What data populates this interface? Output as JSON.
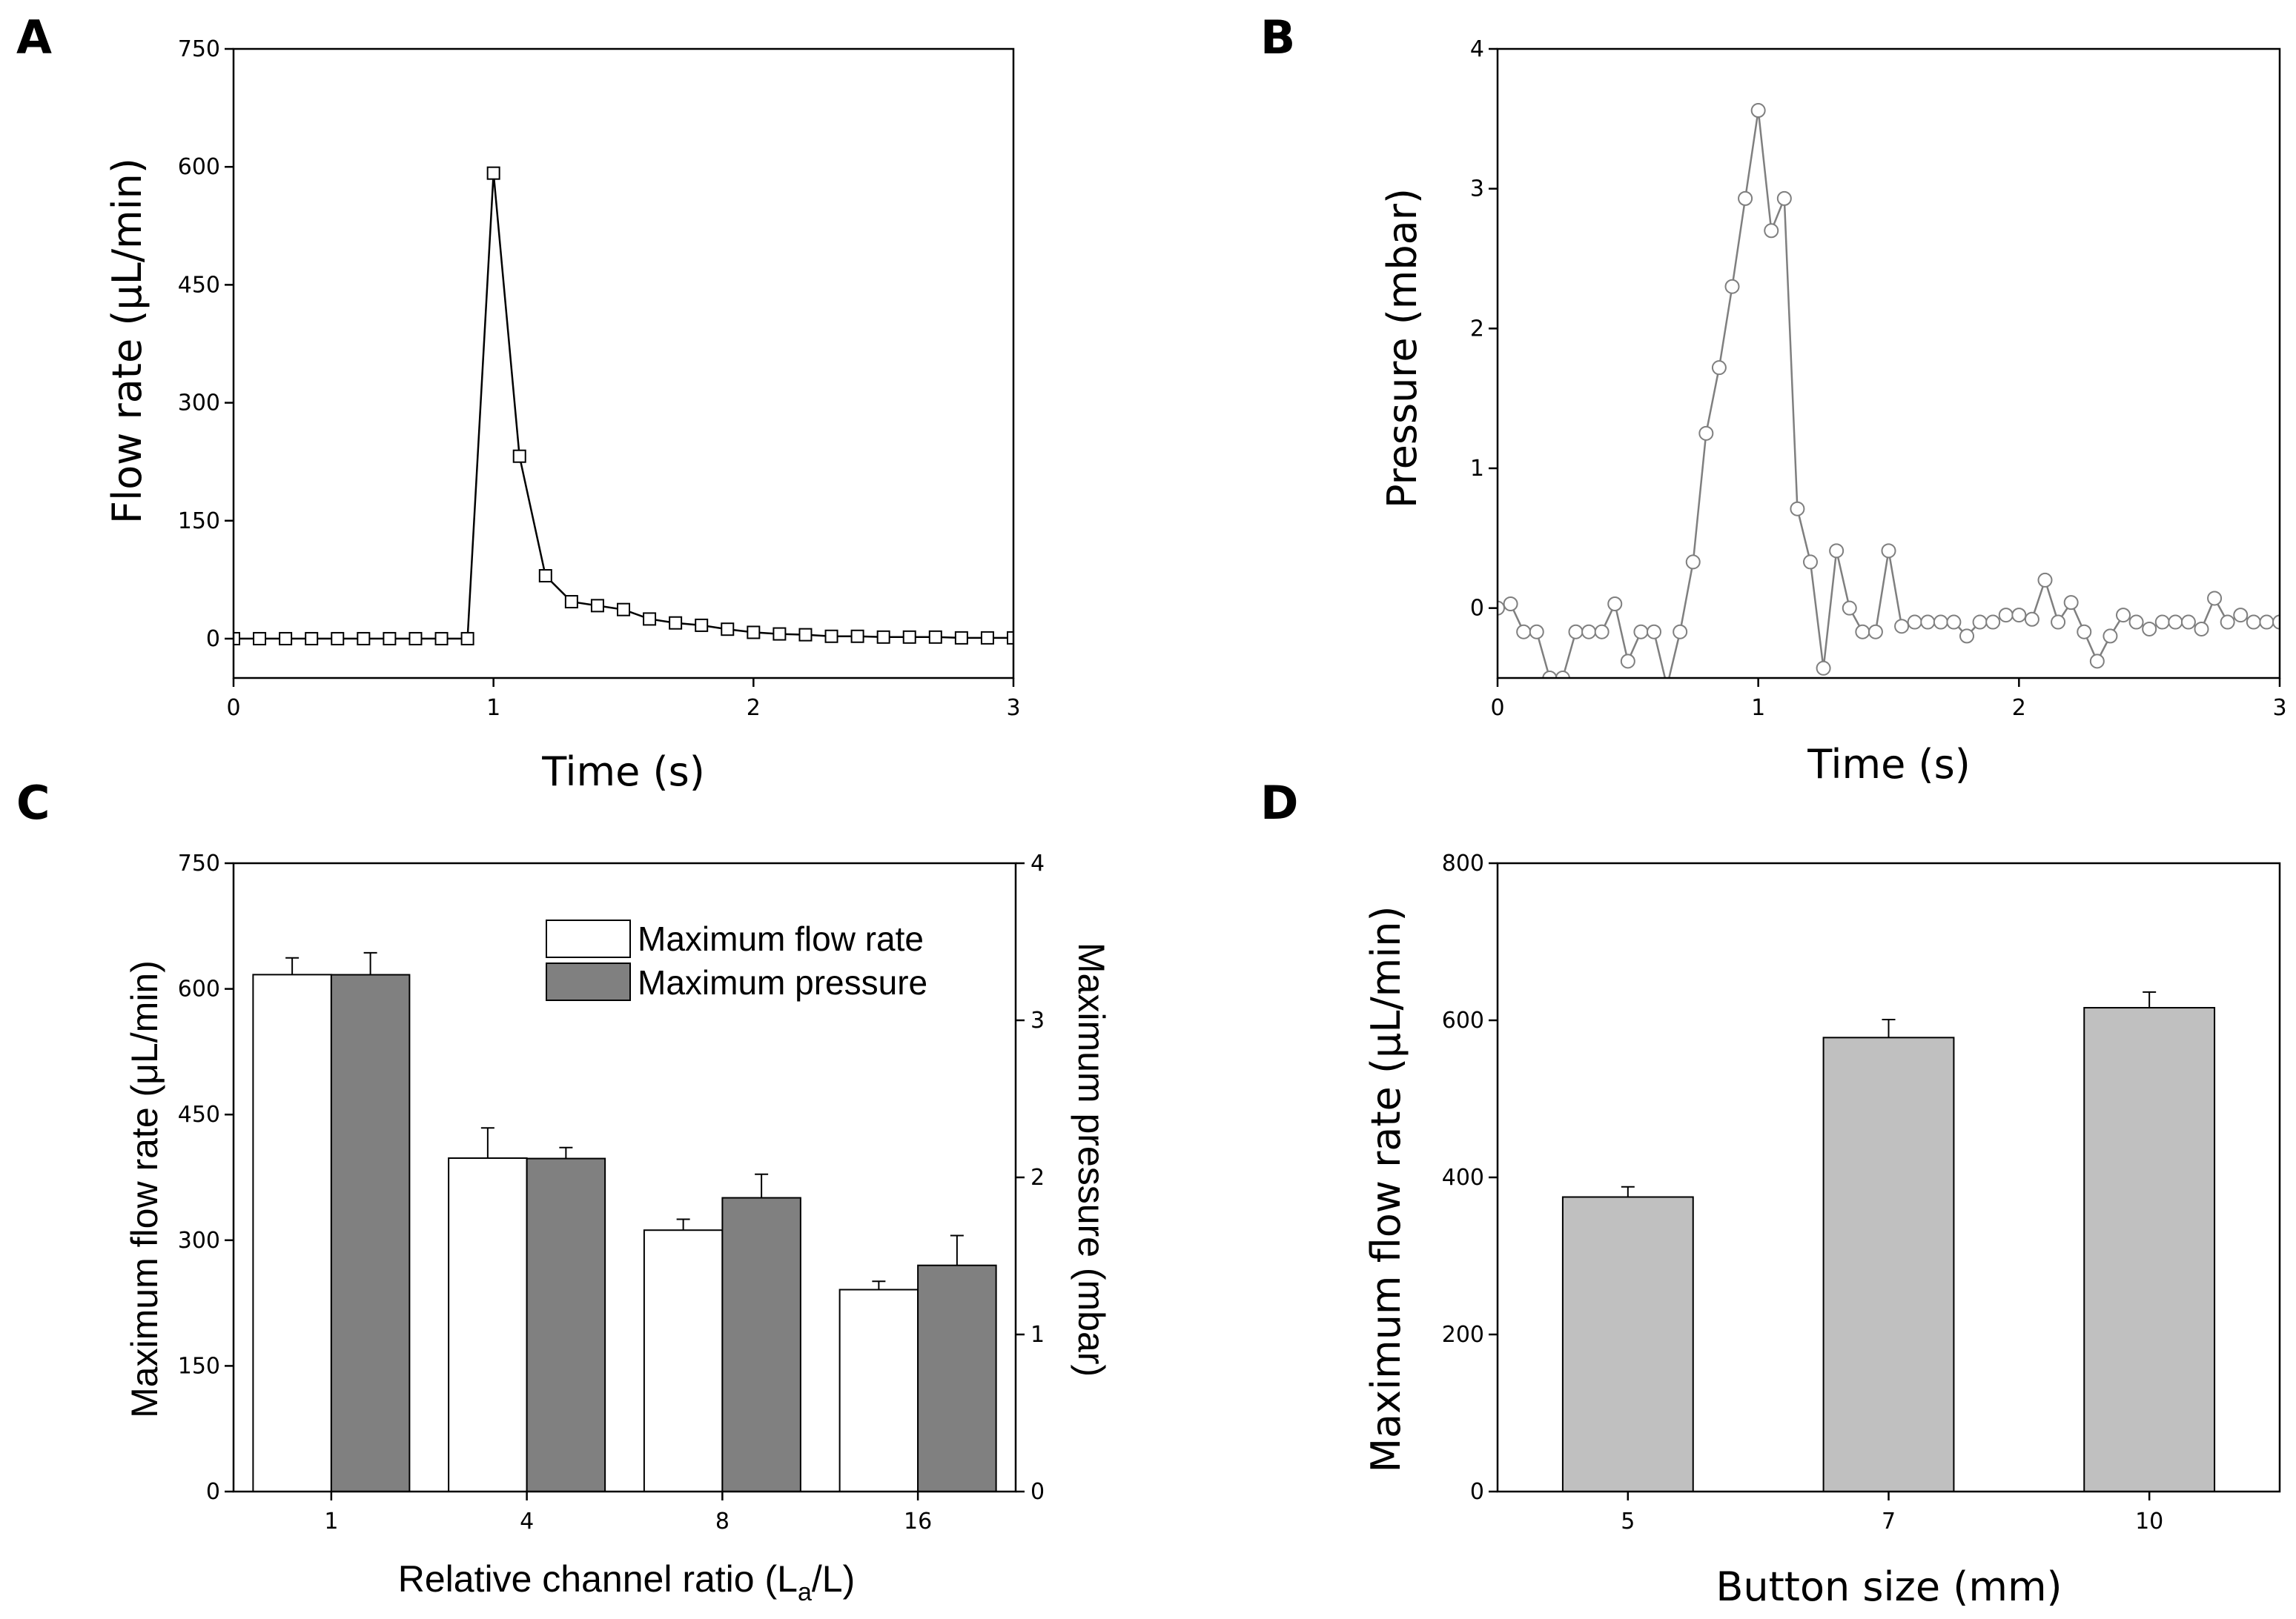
{
  "panels": {
    "A": "A",
    "B": "B",
    "C": "C",
    "D": "D"
  },
  "colors": {
    "line_a": "#000000",
    "line_b": "#7f7f7f",
    "bar_flow": "#ffffff",
    "bar_pressure": "#808080",
    "bar_button": "#c0c0c0",
    "axis": "#000000"
  },
  "chart_data": [
    {
      "id": "A",
      "type": "line",
      "marker": "square",
      "xlabel": "Time (s)",
      "ylabel": "Flow rate (μL/min)",
      "xlim": [
        0,
        3
      ],
      "ylim": [
        -50,
        750
      ],
      "xticks": [
        0,
        1,
        2,
        3
      ],
      "yticks": [
        0,
        150,
        300,
        450,
        600,
        750
      ],
      "x": [
        0,
        0.1,
        0.2,
        0.3,
        0.4,
        0.5,
        0.6,
        0.7,
        0.8,
        0.9,
        1.0,
        1.1,
        1.2,
        1.3,
        1.4,
        1.5,
        1.6,
        1.7,
        1.8,
        1.9,
        2.0,
        2.1,
        2.2,
        2.3,
        2.4,
        2.5,
        2.6,
        2.7,
        2.8,
        2.9,
        3.0
      ],
      "y": [
        0,
        0,
        0,
        0,
        0,
        0,
        0,
        0,
        0,
        0,
        592,
        232,
        80,
        47,
        42,
        37,
        25,
        20,
        17,
        12,
        8,
        6,
        5,
        3,
        3,
        2,
        2,
        2,
        1,
        1,
        1
      ]
    },
    {
      "id": "B",
      "type": "line",
      "marker": "circle",
      "xlabel": "Time (s)",
      "ylabel": "Pressure (mbar)",
      "xlim": [
        0,
        3
      ],
      "ylim": [
        -0.5,
        4
      ],
      "xticks": [
        0,
        1,
        2,
        3
      ],
      "yticks": [
        0,
        1,
        2,
        3,
        4
      ],
      "x": [
        0,
        0.05,
        0.1,
        0.15,
        0.2,
        0.25,
        0.3,
        0.35,
        0.4,
        0.45,
        0.5,
        0.55,
        0.6,
        0.65,
        0.7,
        0.75,
        0.8,
        0.85,
        0.9,
        0.95,
        1.0,
        1.05,
        1.1,
        1.15,
        1.2,
        1.25,
        1.3,
        1.35,
        1.4,
        1.45,
        1.5,
        1.55,
        1.6,
        1.65,
        1.7,
        1.75,
        1.8,
        1.85,
        1.9,
        1.95,
        2.0,
        2.05,
        2.1,
        2.15,
        2.2,
        2.25,
        2.3,
        2.35,
        2.4,
        2.45,
        2.5,
        2.55,
        2.6,
        2.65,
        2.7,
        2.75,
        2.8,
        2.85,
        2.9,
        2.95,
        3.0
      ],
      "y": [
        0.0,
        0.03,
        -0.17,
        -0.17,
        -0.5,
        -0.5,
        -0.17,
        -0.17,
        -0.17,
        0.03,
        -0.38,
        -0.17,
        -0.17,
        -0.56,
        -0.17,
        0.33,
        1.25,
        1.72,
        2.3,
        2.93,
        3.56,
        2.7,
        2.93,
        0.71,
        0.33,
        -0.43,
        0.41,
        0.0,
        -0.17,
        -0.17,
        0.41,
        -0.13,
        -0.1,
        -0.1,
        -0.1,
        -0.1,
        -0.2,
        -0.1,
        -0.1,
        -0.05,
        -0.05,
        -0.08,
        0.2,
        -0.1,
        0.04,
        -0.17,
        -0.38,
        -0.2,
        -0.05,
        -0.1,
        -0.15,
        -0.1,
        -0.1,
        -0.1,
        -0.15,
        0.07,
        -0.1,
        -0.05,
        -0.1,
        -0.1,
        -0.1
      ]
    },
    {
      "id": "C",
      "type": "bar",
      "xlabel": "Relative channel ratio (L",
      "xlabel_sub": "a",
      "xlabel_end": "/L)",
      "ylabel": "Maximum flow rate (μL/min)",
      "ylabel_right": "Maximum pressure (mbar)",
      "categories": [
        "1",
        "4",
        "8",
        "16"
      ],
      "ylim": [
        0,
        750
      ],
      "yticks": [
        0,
        150,
        300,
        450,
        600,
        750
      ],
      "ylim_right": [
        0,
        4
      ],
      "yticks_right": [
        0,
        1,
        2,
        3,
        4
      ],
      "legend_position": "top-right",
      "series": [
        {
          "name": "Maximum flow rate",
          "axis": "left",
          "values": [
            617,
            398,
            312,
            241
          ],
          "errors": [
            20,
            36,
            13,
            10
          ]
        },
        {
          "name": "Maximum pressure",
          "axis": "right",
          "values": [
            3.29,
            2.12,
            1.87,
            1.44
          ],
          "errors": [
            0.14,
            0.07,
            0.15,
            0.19
          ]
        }
      ]
    },
    {
      "id": "D",
      "type": "bar",
      "xlabel": "Button size (mm)",
      "ylabel": "Maximum flow rate (μL/min)",
      "categories": [
        "5",
        "7",
        "10"
      ],
      "ylim": [
        0,
        800
      ],
      "yticks": [
        0,
        200,
        400,
        600,
        800
      ],
      "values": [
        375,
        578,
        616
      ],
      "errors": [
        13,
        23,
        20
      ]
    }
  ]
}
